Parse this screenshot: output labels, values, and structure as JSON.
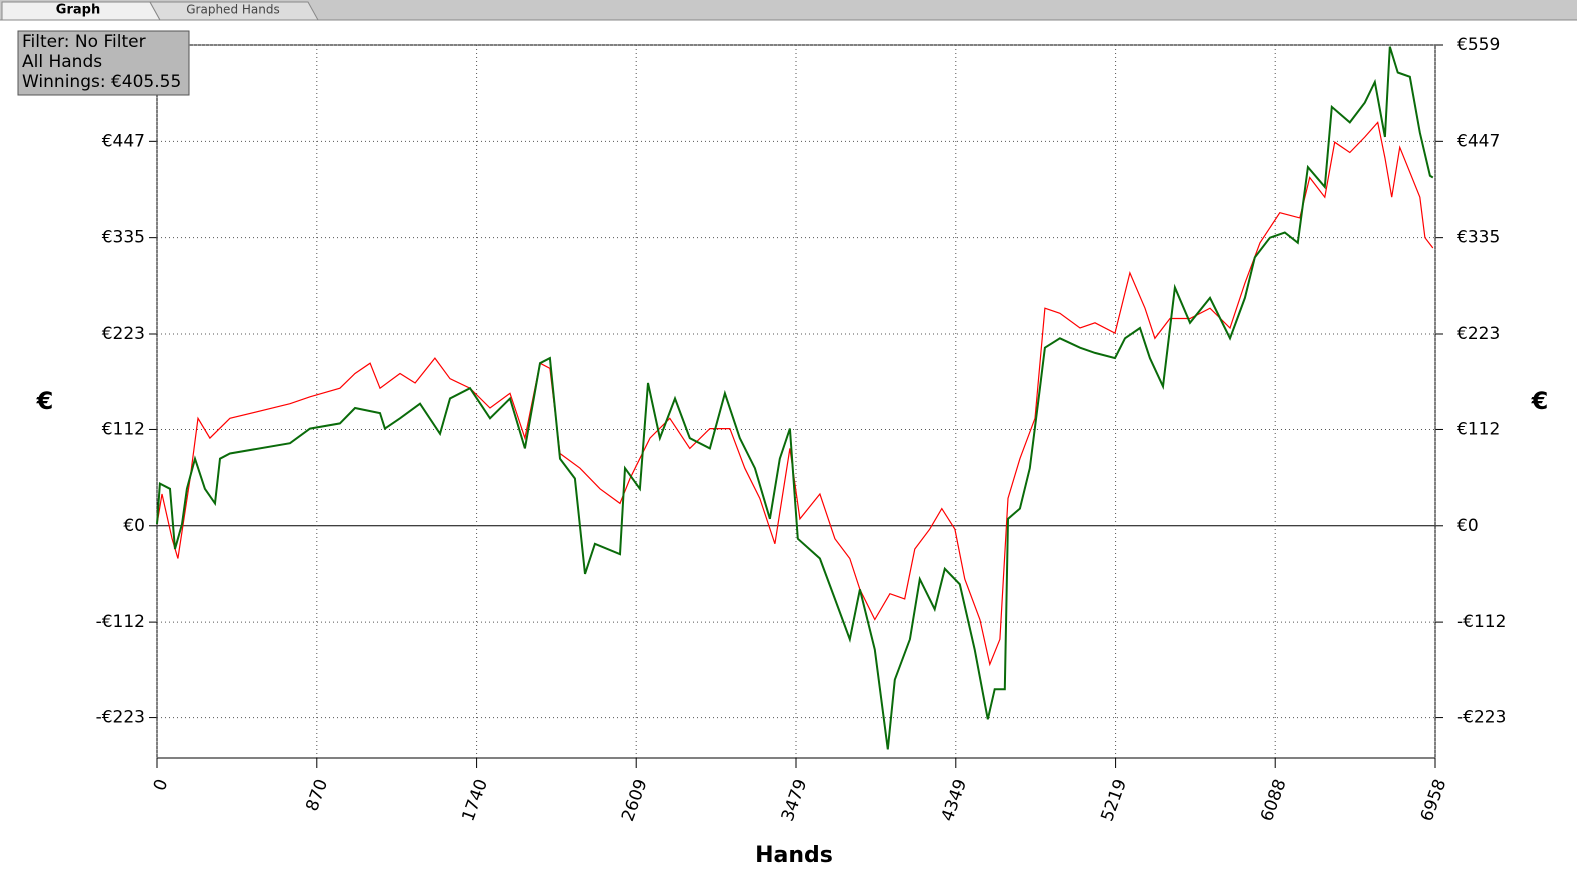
{
  "tabs": [
    "Graph",
    "Graphed Hands"
  ],
  "info": [
    "Filter: No Filter",
    "All Hands",
    "Winnings: €405.55"
  ],
  "chart_data": {
    "type": "line",
    "xlabel": "Hands",
    "ylabel": "€",
    "y2label": "€",
    "xlim": [
      0,
      6958
    ],
    "xticks": [
      0,
      870,
      1740,
      2609,
      3479,
      4349,
      5219,
      6088,
      6958
    ],
    "ylim": [
      -270,
      559
    ],
    "yticks": [
      {
        "value": 559,
        "label": "€559"
      },
      {
        "value": 447,
        "label": "€447"
      },
      {
        "value": 335,
        "label": "€335"
      },
      {
        "value": 223,
        "label": "€223"
      },
      {
        "value": 112,
        "label": "€112"
      },
      {
        "value": 0,
        "label": "€0"
      },
      {
        "value": -112,
        "label": "-€112"
      },
      {
        "value": -223,
        "label": "-€223"
      }
    ],
    "grid": true,
    "series": [
      {
        "color": "#ff0000",
        "x": [
          0,
          27,
          82,
          114,
          180,
          223,
          288,
          397,
          724,
          833,
          996,
          1078,
          1160,
          1214,
          1323,
          1405,
          1513,
          1595,
          1704,
          1813,
          1922,
          2003,
          2085,
          2139,
          2194,
          2303,
          2412,
          2521,
          2575,
          2684,
          2792,
          2901,
          3010,
          3119,
          3200,
          3282,
          3364,
          3446,
          3500,
          3609,
          3691,
          3772,
          3827,
          3908,
          3990,
          4071,
          4126,
          4207,
          4273,
          4344,
          4398,
          4480,
          4534,
          4589,
          4633,
          4698,
          4780,
          4834,
          4916,
          5025,
          5107,
          5216,
          5297,
          5379,
          5433,
          5515,
          5624,
          5733,
          5842,
          5923,
          6005,
          6113,
          6222,
          6276,
          6358,
          6412,
          6494,
          6576,
          6646,
          6685,
          6722,
          6766,
          6821,
          6875,
          6903,
          6946
        ],
        "values": [
          2,
          37,
          -15,
          -38,
          55,
          125,
          102,
          125,
          142,
          150,
          160,
          177,
          189,
          160,
          177,
          166,
          195,
          171,
          160,
          137,
          154,
          102,
          189,
          183,
          84,
          67,
          43,
          26,
          55,
          102,
          125,
          90,
          113,
          113,
          67,
          32,
          -21,
          90,
          8,
          37,
          -15,
          -38,
          -74,
          -109,
          -79,
          -85,
          -27,
          -4,
          20,
          -4,
          -62,
          -109,
          -161,
          -132,
          32,
          78,
          125,
          253,
          247,
          230,
          236,
          224,
          294,
          253,
          218,
          241,
          241,
          253,
          230,
          282,
          329,
          364,
          358,
          405,
          382,
          446,
          434,
          452,
          469,
          428,
          382,
          440,
          411,
          382,
          335,
          323
        ]
      },
      {
        "color": "#0a6b0a",
        "x": [
          0,
          16,
          71,
          98,
          136,
          163,
          207,
          261,
          316,
          343,
          397,
          724,
          833,
          996,
          1078,
          1214,
          1241,
          1323,
          1432,
          1541,
          1595,
          1704,
          1813,
          1922,
          2003,
          2085,
          2139,
          2194,
          2275,
          2330,
          2384,
          2521,
          2548,
          2629,
          2673,
          2738,
          2820,
          2901,
          3010,
          3092,
          3173,
          3255,
          3337,
          3391,
          3446,
          3489,
          3609,
          3691,
          3772,
          3827,
          3908,
          3979,
          4017,
          4099,
          4153,
          4234,
          4289,
          4371,
          4452,
          4523,
          4561,
          4616,
          4633,
          4698,
          4752,
          4807,
          4834,
          4916,
          5025,
          5107,
          5216,
          5270,
          5352,
          5406,
          5477,
          5542,
          5624,
          5733,
          5842,
          5923,
          5977,
          6059,
          6140,
          6211,
          6266,
          6358,
          6396,
          6494,
          6576,
          6630,
          6685,
          6712,
          6755,
          6821,
          6875,
          6930,
          6946
        ],
        "values": [
          2,
          49,
          43,
          -27,
          2,
          43,
          78,
          43,
          26,
          78,
          84,
          96,
          113,
          119,
          137,
          131,
          113,
          125,
          142,
          107,
          148,
          160,
          125,
          148,
          90,
          189,
          195,
          78,
          55,
          -56,
          -21,
          -33,
          67,
          43,
          166,
          102,
          148,
          102,
          90,
          154,
          102,
          67,
          8,
          78,
          113,
          -15,
          -38,
          -85,
          -132,
          -74,
          -144,
          -260,
          -179,
          -132,
          -62,
          -97,
          -50,
          -68,
          -144,
          -225,
          -190,
          -190,
          8,
          20,
          67,
          160,
          207,
          218,
          207,
          201,
          195,
          218,
          230,
          195,
          162,
          277,
          236,
          265,
          218,
          265,
          312,
          335,
          341,
          329,
          417,
          394,
          487,
          469,
          492,
          516,
          452,
          557,
          527,
          522,
          457,
          407,
          405
        ]
      }
    ]
  }
}
